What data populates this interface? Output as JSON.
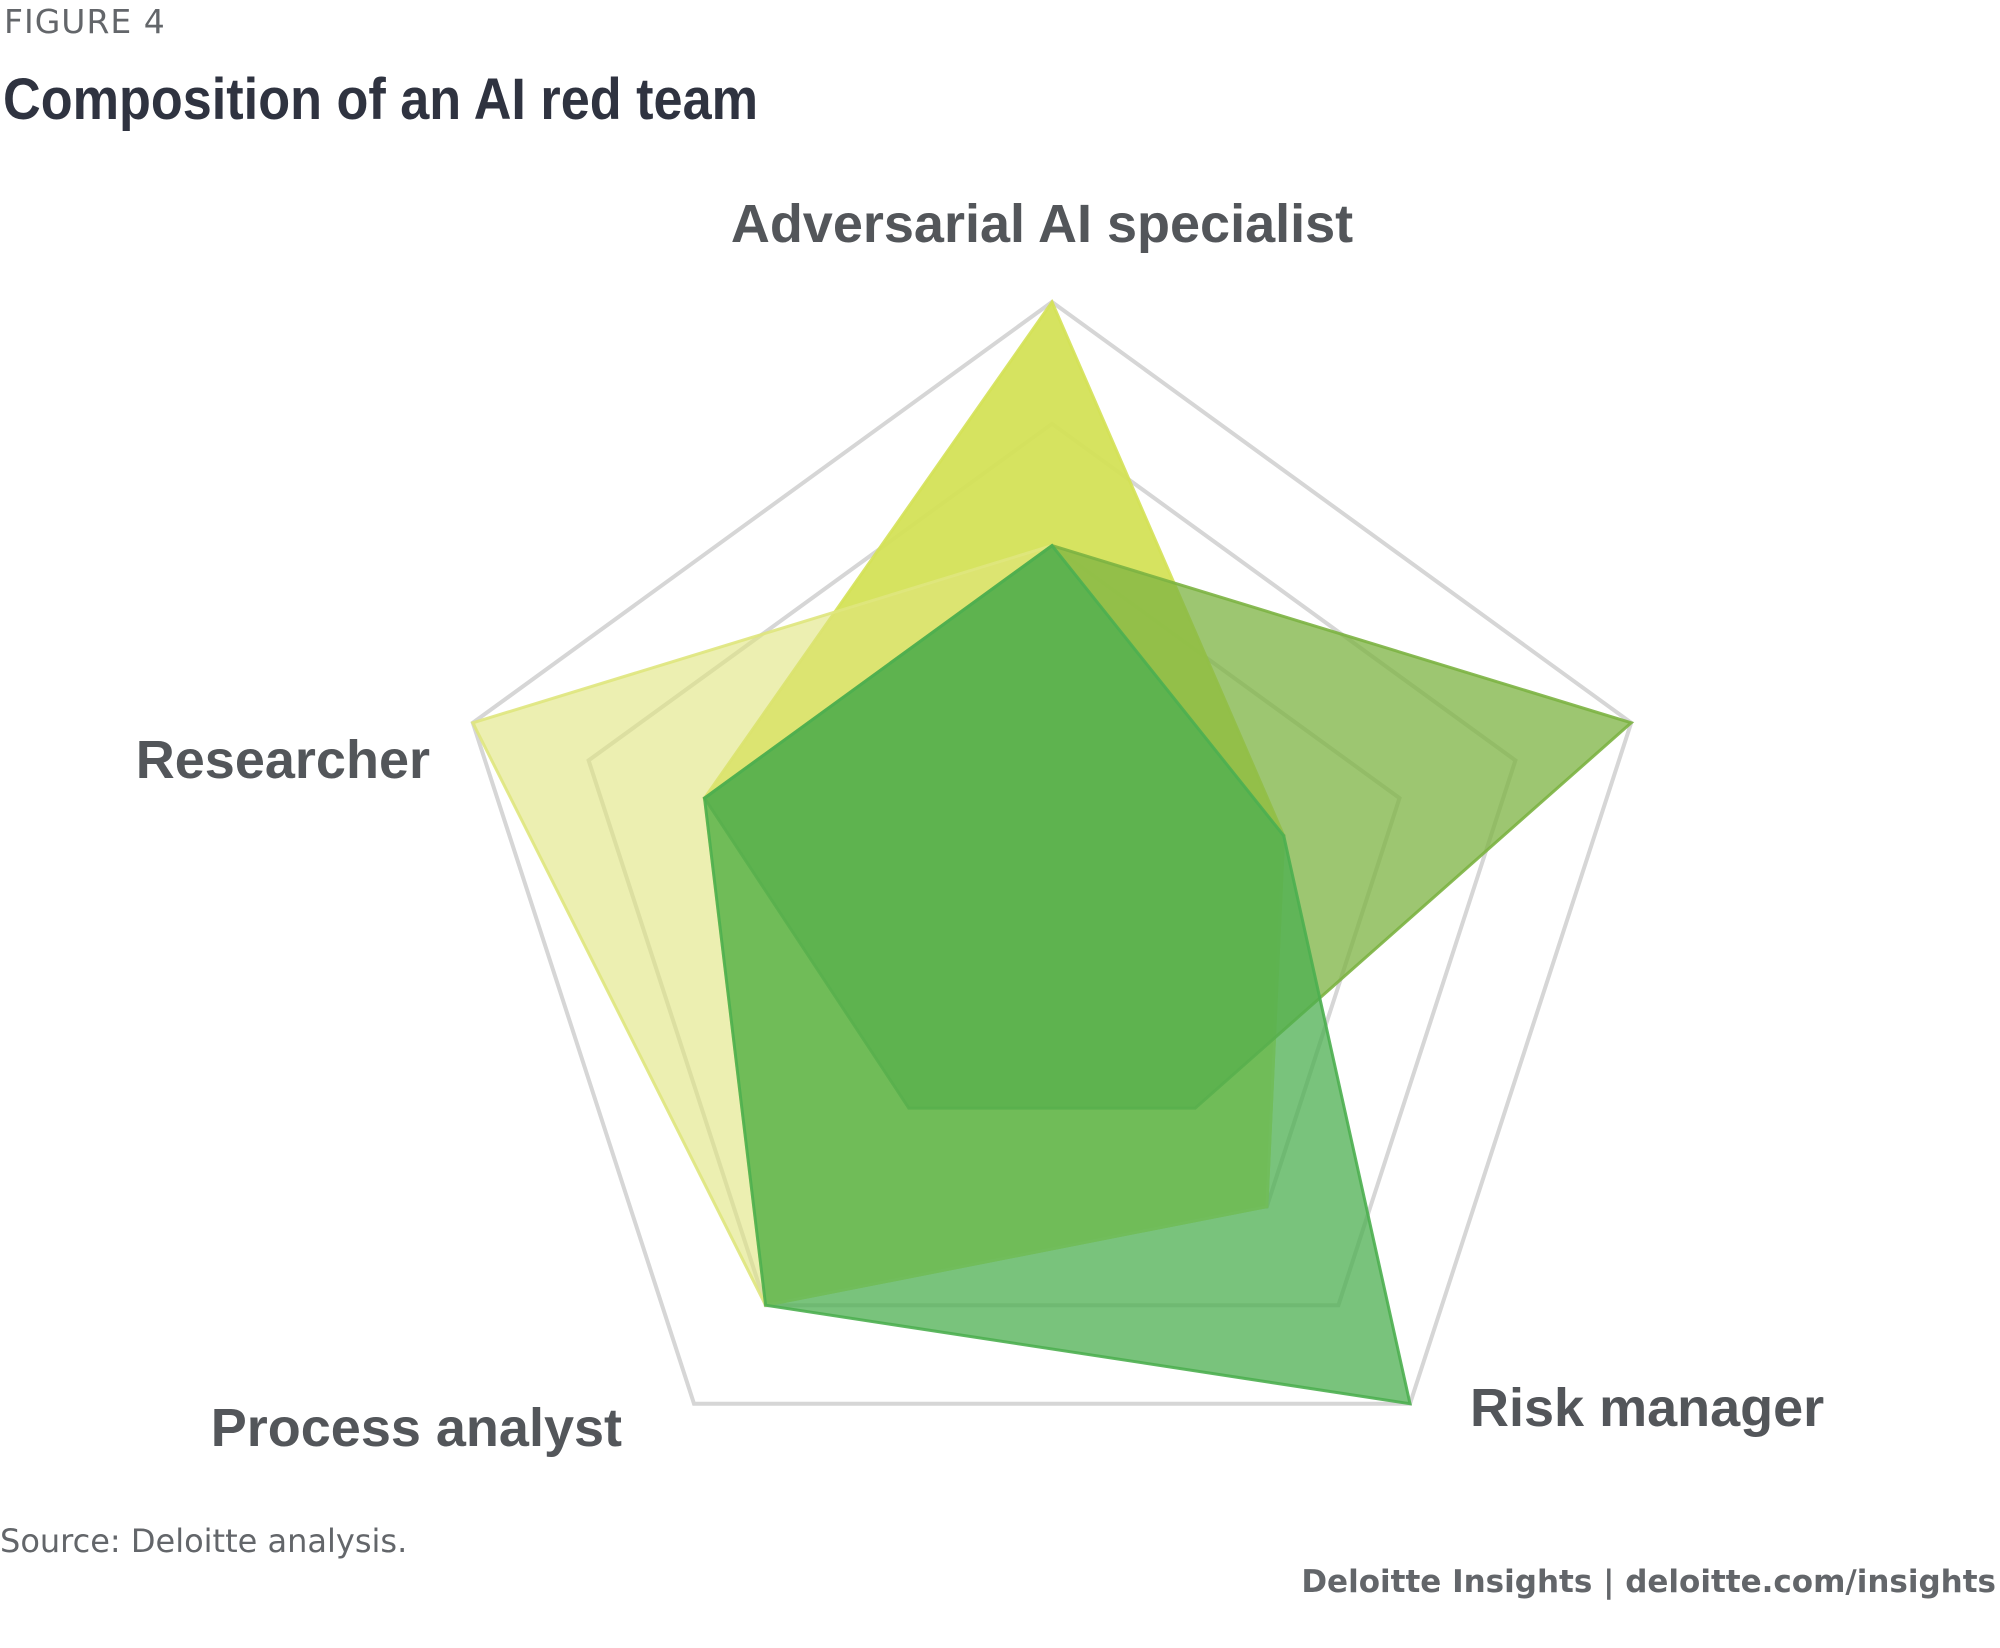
{
  "figure_label": "FIGURE 4",
  "title": "Composition of an AI red team",
  "source": "Source: Deloitte analysis.",
  "credit": "Deloitte Insights | deloitte.com/insights",
  "colors": {
    "grid": "#d6d6d6",
    "series_light": "#d4e157",
    "series_mid": "#7cb342",
    "series_dark": "#43a047"
  },
  "chart_data": {
    "type": "radar",
    "axes": [
      "Adversarial AI specialist",
      "Risk manager",
      "Process analyst",
      "Researcher"
    ],
    "axis_labels": [
      "Adversarial AI specialist",
      "",
      "Risk manager",
      "Process analyst",
      "Researcher"
    ],
    "range": [
      0,
      5
    ],
    "grid_levels": 5,
    "grid": true,
    "legend": "none",
    "series": [
      {
        "color": "#d4e157",
        "opacity": 0.95,
        "values": [
          5,
          2,
          3,
          4,
          3
        ]
      },
      {
        "color": "#dfe57d",
        "opacity": 0.6,
        "values": [
          3,
          2,
          3,
          4,
          5
        ]
      },
      {
        "color": "#7cb342",
        "opacity": 0.75,
        "values": [
          3,
          5,
          2,
          2,
          3
        ]
      },
      {
        "color": "#4caf50",
        "opacity": 0.75,
        "values": [
          3,
          2,
          5,
          4,
          3
        ]
      }
    ]
  }
}
